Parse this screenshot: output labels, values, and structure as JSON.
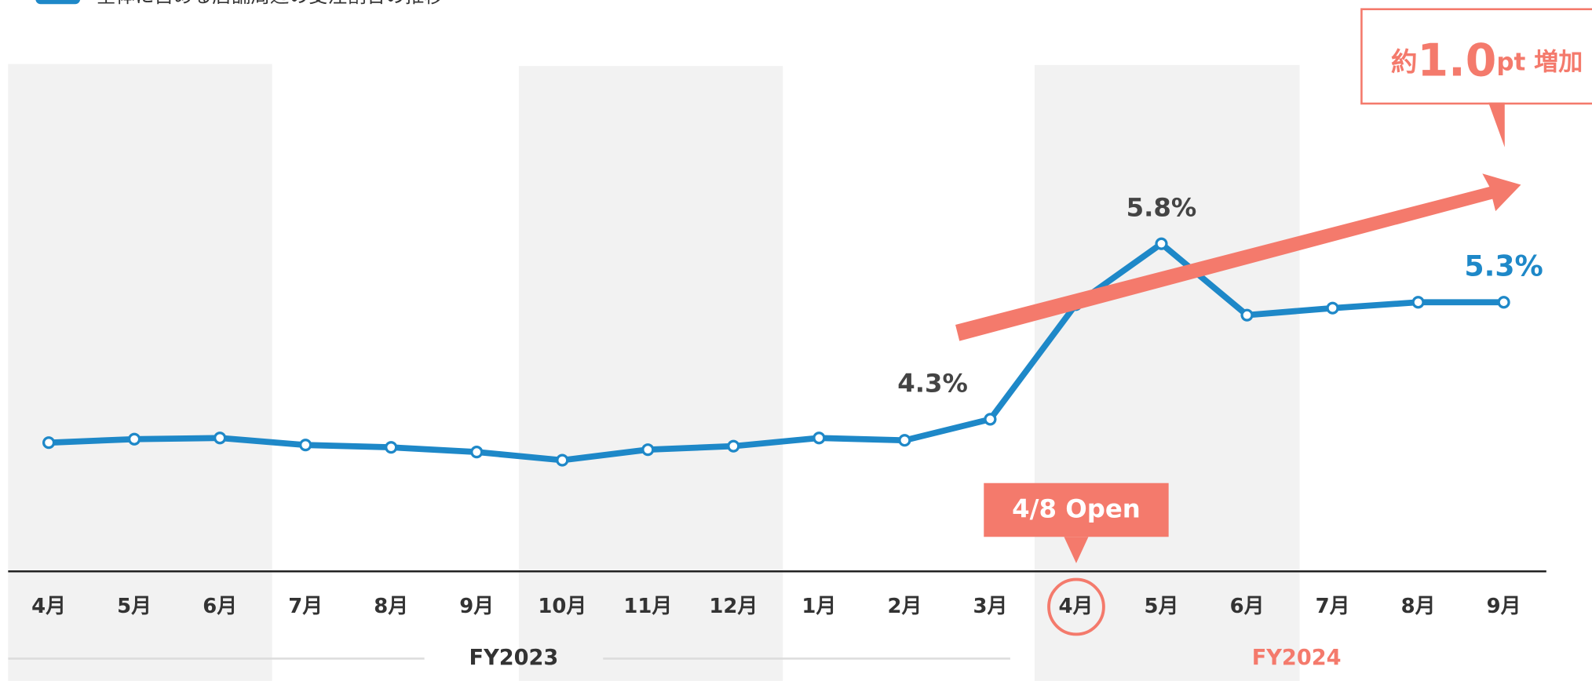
{
  "chart_data": {
    "type": "line",
    "legend": "全体に占める店舗周辺の受注割合の推移",
    "categories": [
      "4月",
      "5月",
      "6月",
      "7月",
      "8月",
      "9月",
      "10月",
      "11月",
      "12月",
      "1月",
      "2月",
      "3月",
      "4月",
      "5月",
      "6月",
      "7月",
      "8月",
      "9月"
    ],
    "series": [
      {
        "name": "全体に占める店舗周辺の受注割合の推移",
        "color": "#1e88c8",
        "values": [
          4.1,
          4.13,
          4.14,
          4.08,
          4.06,
          4.02,
          3.95,
          4.04,
          4.07,
          4.14,
          4.12,
          4.3,
          5.28,
          5.8,
          5.19,
          5.25,
          5.3,
          5.3
        ],
        "value_labels": [
          null,
          null,
          null,
          null,
          null,
          null,
          null,
          null,
          null,
          null,
          null,
          "4.3%",
          null,
          "5.8%",
          null,
          null,
          null,
          "5.3%"
        ]
      }
    ],
    "ylim": [
      3.0,
      6.5
    ],
    "groups": [
      "FY2023",
      "FY2024"
    ],
    "annotations": {
      "event": "4/8 Open",
      "increase": [
        "約",
        "1.0",
        "pt 増加"
      ]
    }
  }
}
